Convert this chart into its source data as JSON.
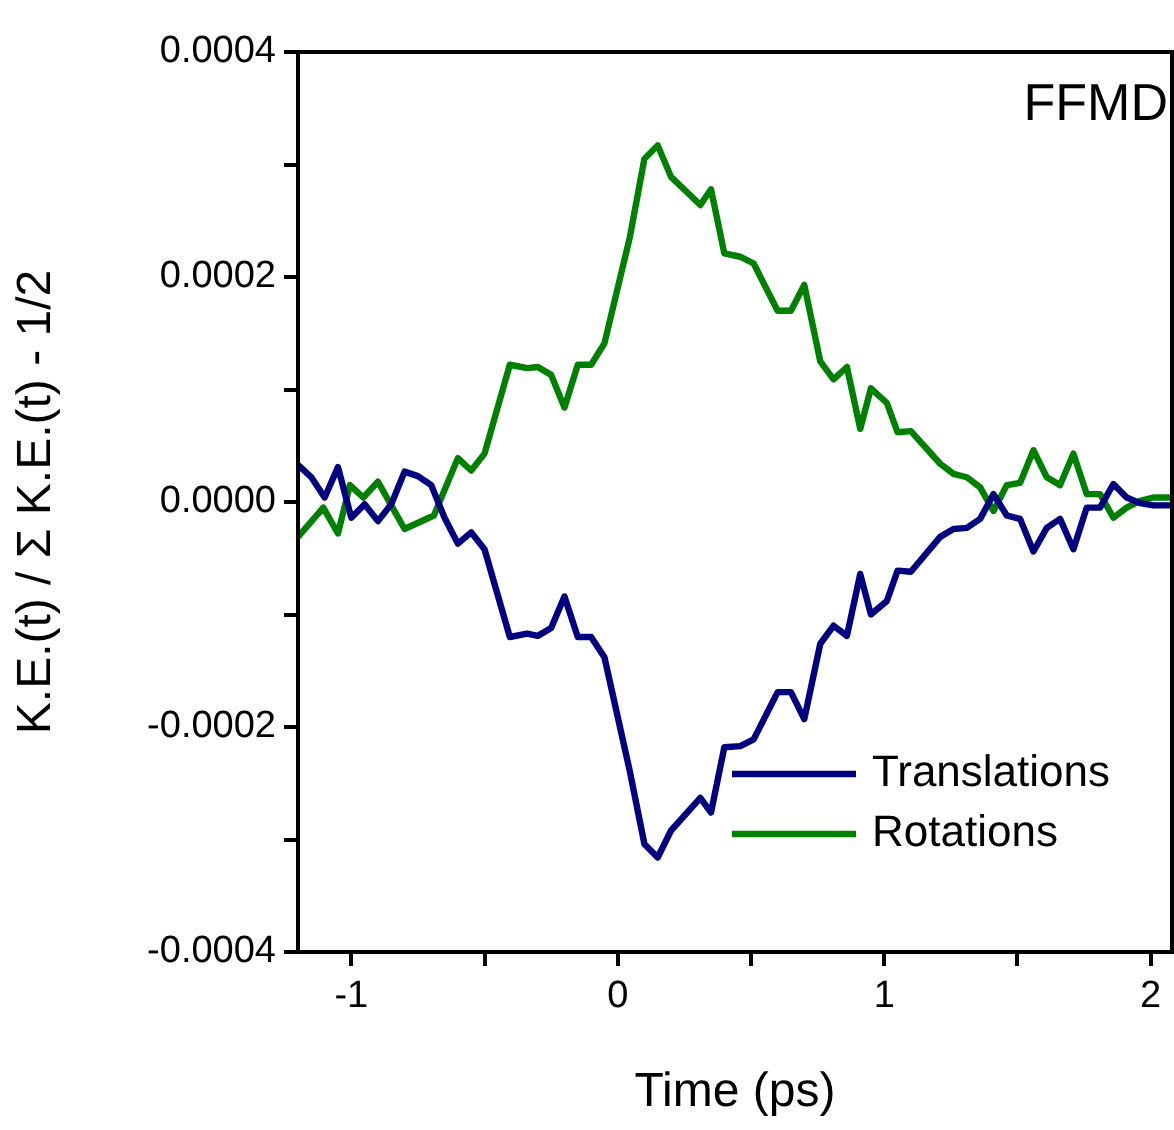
{
  "chart_data": {
    "type": "line",
    "xlabel": "Time (ps)",
    "ylabel": "K.E.(t) / Σ K.E.(t) - 1/2",
    "annotations": [
      "FFMD"
    ],
    "xlim": [
      -1.2,
      2.08
    ],
    "ylim": [
      -0.0004,
      0.0004
    ],
    "xticks": [
      {
        "value": -1,
        "label": "-1"
      },
      {
        "value": -0.5,
        "label": null
      },
      {
        "value": 0,
        "label": "0"
      },
      {
        "value": 0.5,
        "label": null
      },
      {
        "value": 1,
        "label": "1"
      },
      {
        "value": 1.5,
        "label": null
      },
      {
        "value": 2,
        "label": "2"
      }
    ],
    "yticks": [
      {
        "value": -0.0004,
        "label": "-0.0004"
      },
      {
        "value": -0.0003,
        "label": null
      },
      {
        "value": -0.0002,
        "label": "-0.0002"
      },
      {
        "value": -0.0001,
        "label": null
      },
      {
        "value": 0,
        "label": "0.0000"
      },
      {
        "value": 0.0001,
        "label": null
      },
      {
        "value": 0.0002,
        "label": "0.0002"
      },
      {
        "value": 0.0003,
        "label": null
      },
      {
        "value": 0.0004,
        "label": "0.0004"
      }
    ],
    "grid": false,
    "legend": "bottom right",
    "marker": "none",
    "line_style": "solid",
    "series": [
      {
        "name": "Translations",
        "color": "#000080",
        "x": [
          -1.2,
          -1.15,
          -1.1,
          -1.05,
          -1.0,
          -0.95,
          -0.9,
          -0.85,
          -0.8,
          -0.75,
          -0.7,
          -0.65,
          -0.6,
          -0.55,
          -0.5,
          -0.405,
          -0.34,
          -0.3,
          -0.25,
          -0.2,
          -0.15,
          -0.1,
          -0.05,
          0.045,
          0.1,
          0.15,
          0.2,
          0.31,
          0.35,
          0.4,
          0.46,
          0.51,
          0.6,
          0.65,
          0.7,
          0.76,
          0.81,
          0.86,
          0.91,
          0.95,
          1.01,
          1.05,
          1.1,
          1.21,
          1.26,
          1.31,
          1.36,
          1.41,
          1.46,
          1.51,
          1.56,
          1.61,
          1.66,
          1.71,
          1.76,
          1.81,
          1.86,
          1.91,
          1.96,
          2.01,
          2.08
        ],
        "values": [
          3.3e-05,
          2.2e-05,
          4e-06,
          3.1e-05,
          -1.4e-05,
          -2e-06,
          -1.7e-05,
          -2e-06,
          2.7e-05,
          2.3e-05,
          1.5e-05,
          -1.4e-05,
          -3.7e-05,
          -2.7e-05,
          -4.2e-05,
          -0.00012,
          -0.000117,
          -0.000119,
          -0.000112,
          -8.4e-05,
          -0.00012,
          -0.00012,
          -0.000138,
          -0.000239,
          -0.000304,
          -0.000316,
          -0.000292,
          -0.000263,
          -0.000276,
          -0.000218,
          -0.000217,
          -0.000211,
          -0.000169,
          -0.000169,
          -0.000193,
          -0.000126,
          -0.00011,
          -0.000119,
          -6.4e-05,
          -0.0001,
          -8.8e-05,
          -6.1e-05,
          -6.2e-05,
          -3.1e-05,
          -2.4e-05,
          -2.3e-05,
          -1.5e-05,
          7e-06,
          -1.2e-05,
          -1.5e-05,
          -4.4e-05,
          -2.3e-05,
          -1.5e-05,
          -4.2e-05,
          -5e-06,
          -5e-06,
          1.6e-05,
          4e-06,
          -1e-06,
          -3e-06,
          -3e-06
        ]
      },
      {
        "name": "Rotations",
        "color": "#008000",
        "x": [
          -1.2,
          -1.105,
          -1.05,
          -1.005,
          -0.955,
          -0.9,
          -0.8,
          -0.69,
          -0.6,
          -0.55,
          -0.5,
          -0.405,
          -0.34,
          -0.3,
          -0.25,
          -0.2,
          -0.15,
          -0.1,
          -0.05,
          0.045,
          0.1,
          0.15,
          0.2,
          0.31,
          0.35,
          0.4,
          0.46,
          0.51,
          0.6,
          0.65,
          0.7,
          0.76,
          0.81,
          0.86,
          0.91,
          0.95,
          1.01,
          1.05,
          1.1,
          1.21,
          1.26,
          1.31,
          1.36,
          1.41,
          1.46,
          1.51,
          1.56,
          1.61,
          1.66,
          1.71,
          1.76,
          1.81,
          1.86,
          1.91,
          1.96,
          2.01,
          2.08
        ],
        "values": [
          -3.1e-05,
          -5e-06,
          -2.8e-05,
          1.5e-05,
          4e-06,
          1.8e-05,
          -2.4e-05,
          -1.2e-05,
          3.9e-05,
          2.8e-05,
          4.3e-05,
          0.000122,
          0.000119,
          0.00012,
          0.000113,
          8.4e-05,
          0.000122,
          0.000122,
          0.000141,
          0.000235,
          0.000305,
          0.000317,
          0.000289,
          0.000264,
          0.000278,
          0.000221,
          0.000218,
          0.000212,
          0.00017,
          0.00017,
          0.000193,
          0.000125,
          0.000109,
          0.00012,
          6.5e-05,
          0.000101,
          8.8e-05,
          6.2e-05,
          6.3e-05,
          3.4e-05,
          2.5e-05,
          2.2e-05,
          1.3e-05,
          -8e-06,
          1.5e-05,
          1.7e-05,
          4.6e-05,
          2.2e-05,
          1.5e-05,
          4.3e-05,
          7e-06,
          7e-06,
          -1.4e-05,
          -5e-06,
          1e-06,
          4e-06,
          4e-06
        ]
      }
    ]
  }
}
